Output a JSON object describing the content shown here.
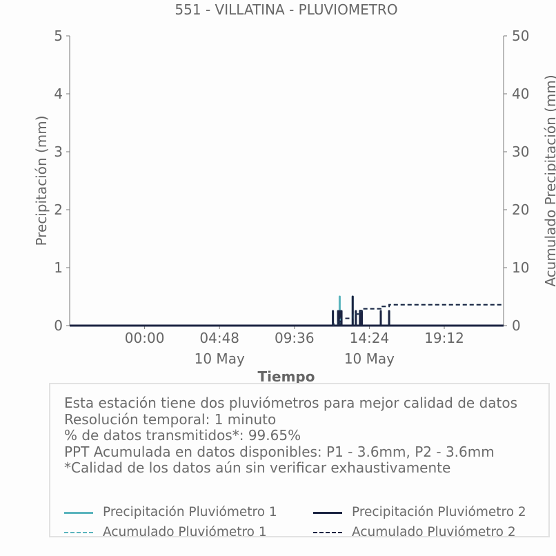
{
  "chart_data": {
    "type": "line",
    "title": "551 - VILLATINA - PLUVIOMETRO",
    "xlabel": "Tiempo",
    "ylabel": "Precipitación (mm)",
    "y2label": "Acumulado Precipitación (mm)",
    "ylim": [
      0,
      5
    ],
    "y2lim": [
      0,
      50
    ],
    "yticks": [
      "0",
      "1",
      "2",
      "3",
      "4",
      "5"
    ],
    "y2ticks": [
      "0",
      "10",
      "20",
      "30",
      "40",
      "50"
    ],
    "xlim": [
      "2024-05-09 19:12",
      "2024-05-10 23:00"
    ],
    "xticks": [
      {
        "t": "2024-05-10 00:00",
        "label": "00:00",
        "sublabel": ""
      },
      {
        "t": "2024-05-10 04:48",
        "label": "04:48",
        "sublabel": "10 May"
      },
      {
        "t": "2024-05-10 09:36",
        "label": "09:36",
        "sublabel": ""
      },
      {
        "t": "2024-05-10 14:24",
        "label": "14:24",
        "sublabel": "10 May"
      },
      {
        "t": "2024-05-10 19:12",
        "label": "19:12",
        "sublabel": ""
      }
    ],
    "grid": false,
    "series": [
      {
        "name": "Precipitación Pluviómetro 1",
        "axis": "left",
        "style": "solid",
        "color": "#5ab4bd",
        "points": [
          [
            "2024-05-10 12:04",
            0.25
          ],
          [
            "2024-05-10 12:24",
            0.25
          ],
          [
            "2024-05-10 12:30",
            0.5
          ],
          [
            "2024-05-10 12:36",
            0.25
          ],
          [
            "2024-05-10 13:20",
            0.5
          ],
          [
            "2024-05-10 13:32",
            0.25
          ],
          [
            "2024-05-10 13:48",
            0.25
          ],
          [
            "2024-05-10 13:55",
            0.25
          ],
          [
            "2024-05-10 15:08",
            0.25
          ],
          [
            "2024-05-10 15:40",
            0.25
          ]
        ]
      },
      {
        "name": "Precipitación Pluviómetro 2",
        "axis": "left",
        "style": "solid",
        "color": "#1c2442",
        "points": [
          [
            "2024-05-10 12:04",
            0.25
          ],
          [
            "2024-05-10 12:24",
            0.25
          ],
          [
            "2024-05-10 12:31",
            0.25
          ],
          [
            "2024-05-10 12:37",
            0.25
          ],
          [
            "2024-05-10 13:20",
            0.5
          ],
          [
            "2024-05-10 13:32",
            0.25
          ],
          [
            "2024-05-10 13:48",
            0.25
          ],
          [
            "2024-05-10 13:55",
            0.25
          ],
          [
            "2024-05-10 15:08",
            0.25
          ],
          [
            "2024-05-10 15:40",
            0.25
          ]
        ]
      },
      {
        "name": "Acumulado Pluviómetro 1",
        "axis": "right",
        "style": "dashed",
        "color": "#5ab4bd",
        "steps": [
          [
            "2024-05-09 19:12",
            0
          ],
          [
            "2024-05-10 12:04",
            0.25
          ],
          [
            "2024-05-10 12:24",
            0.5
          ],
          [
            "2024-05-10 12:30",
            1.0
          ],
          [
            "2024-05-10 12:36",
            1.25
          ],
          [
            "2024-05-10 13:20",
            1.75
          ],
          [
            "2024-05-10 13:32",
            2.0
          ],
          [
            "2024-05-10 13:48",
            2.6
          ],
          [
            "2024-05-10 13:55",
            2.9
          ],
          [
            "2024-05-10 15:08",
            3.3
          ],
          [
            "2024-05-10 15:40",
            3.6
          ],
          [
            "2024-05-10 23:00",
            3.6
          ]
        ]
      },
      {
        "name": "Acumulado Pluviómetro 2",
        "axis": "right",
        "style": "dashed",
        "color": "#1c2442",
        "steps": [
          [
            "2024-05-09 19:12",
            0
          ],
          [
            "2024-05-10 12:04",
            0.25
          ],
          [
            "2024-05-10 12:24",
            0.5
          ],
          [
            "2024-05-10 12:31",
            0.75
          ],
          [
            "2024-05-10 12:37",
            1.25
          ],
          [
            "2024-05-10 13:20",
            1.75
          ],
          [
            "2024-05-10 13:32",
            2.0
          ],
          [
            "2024-05-10 13:48",
            2.6
          ],
          [
            "2024-05-10 13:55",
            2.9
          ],
          [
            "2024-05-10 15:08",
            3.3
          ],
          [
            "2024-05-10 15:40",
            3.6
          ],
          [
            "2024-05-10 23:00",
            3.6
          ]
        ]
      }
    ]
  },
  "info": {
    "lines": [
      "Esta estación tiene dos pluviómetros para mejor calidad de datos",
      "Resolución temporal: 1 minuto",
      "% de datos transmitidos*: 99.65%",
      "PPT Acumulada en datos disponibles: P1 - 3.6mm, P2 - 3.6mm",
      "*Calidad de los datos aún sin verificar exhaustivamente"
    ]
  },
  "legend": {
    "items": [
      {
        "label": "Precipitación Pluviómetro 1",
        "color": "#5ab4bd",
        "style": "solid"
      },
      {
        "label": "Precipitación Pluviómetro 2",
        "color": "#1c2442",
        "style": "solid"
      },
      {
        "label": "Acumulado Pluviómetro 1",
        "color": "#5ab4bd",
        "style": "dashed"
      },
      {
        "label": "Acumulado Pluviómetro 2",
        "color": "#1c2442",
        "style": "dashed"
      }
    ]
  }
}
